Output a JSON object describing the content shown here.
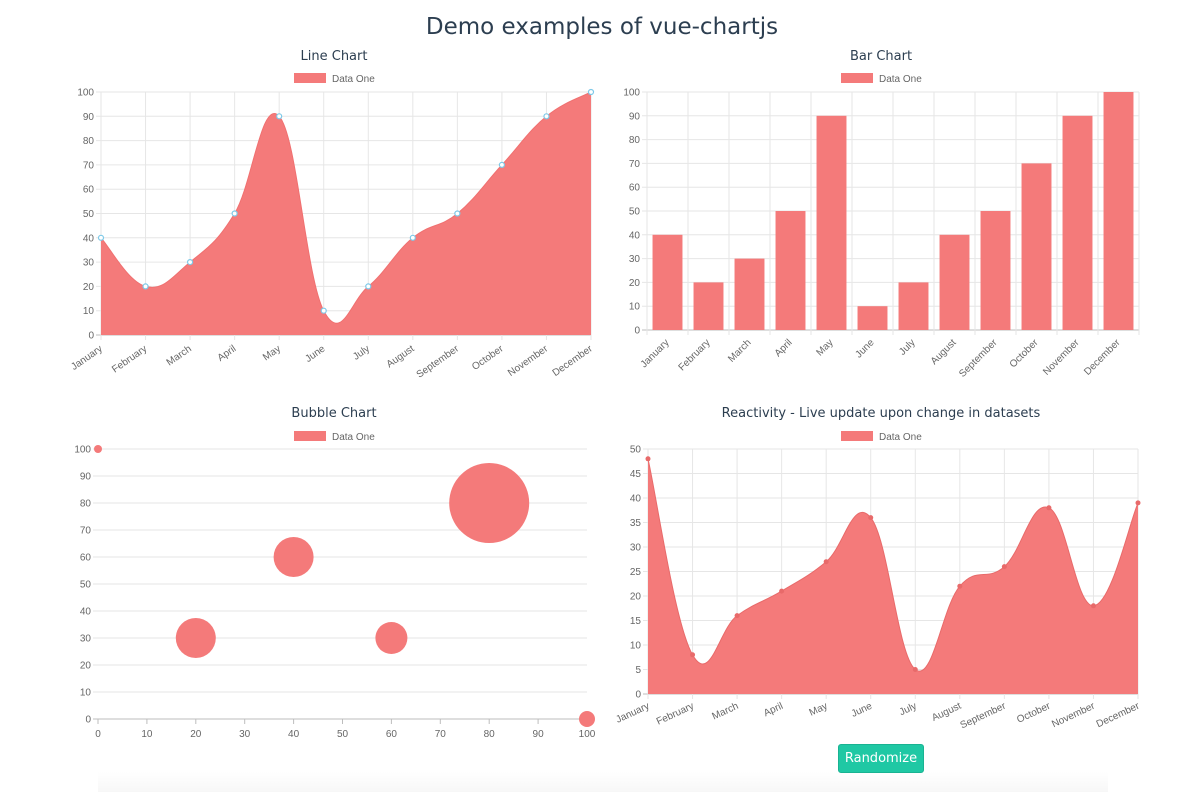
{
  "page": {
    "title": "Demo examples of vue-chartjs"
  },
  "colors": {
    "fill": "#f47a7a",
    "point_border": "#7ec9e8",
    "button": "#1fc8a4"
  },
  "randomize_label": "Randomize",
  "chart_data": [
    {
      "type": "area",
      "title": "Line Chart",
      "legend": [
        "Data One"
      ],
      "legend_position": "top",
      "categories": [
        "January",
        "February",
        "March",
        "April",
        "May",
        "June",
        "July",
        "August",
        "September",
        "October",
        "November",
        "December"
      ],
      "series": [
        {
          "name": "Data One",
          "values": [
            40,
            20,
            30,
            50,
            90,
            10,
            20,
            40,
            50,
            70,
            90,
            100
          ]
        }
      ],
      "ylim": [
        0,
        100
      ],
      "yticks": [
        0,
        10,
        20,
        30,
        40,
        50,
        60,
        70,
        80,
        90,
        100
      ],
      "grid": true
    },
    {
      "type": "bar",
      "title": "Bar Chart",
      "legend": [
        "Data One"
      ],
      "legend_position": "top",
      "categories": [
        "January",
        "February",
        "March",
        "April",
        "May",
        "June",
        "July",
        "August",
        "September",
        "October",
        "November",
        "December"
      ],
      "series": [
        {
          "name": "Data One",
          "values": [
            40,
            20,
            30,
            50,
            90,
            10,
            20,
            40,
            50,
            70,
            90,
            100
          ]
        }
      ],
      "ylim": [
        0,
        100
      ],
      "yticks": [
        0,
        10,
        20,
        30,
        40,
        50,
        60,
        70,
        80,
        90,
        100
      ],
      "grid": true
    },
    {
      "type": "scatter",
      "title": "Bubble Chart",
      "legend": [
        "Data One"
      ],
      "legend_position": "top",
      "series": [
        {
          "name": "Data One",
          "points": [
            {
              "x": 0,
              "y": 100,
              "r": 4
            },
            {
              "x": 20,
              "y": 30,
              "r": 20
            },
            {
              "x": 40,
              "y": 60,
              "r": 20
            },
            {
              "x": 60,
              "y": 30,
              "r": 16
            },
            {
              "x": 80,
              "y": 80,
              "r": 40
            },
            {
              "x": 100,
              "y": 0,
              "r": 8
            }
          ]
        }
      ],
      "xlim": [
        0,
        100
      ],
      "ylim": [
        0,
        100
      ],
      "xticks": [
        0,
        10,
        20,
        30,
        40,
        50,
        60,
        70,
        80,
        90,
        100
      ],
      "yticks": [
        0,
        10,
        20,
        30,
        40,
        50,
        60,
        70,
        80,
        90,
        100
      ],
      "grid": true
    },
    {
      "type": "area",
      "title": "Reactivity - Live update upon change in datasets",
      "legend": [
        "Data One"
      ],
      "legend_position": "top",
      "categories": [
        "January",
        "February",
        "March",
        "April",
        "May",
        "June",
        "July",
        "August",
        "September",
        "October",
        "November",
        "December"
      ],
      "series": [
        {
          "name": "Data One",
          "values": [
            48,
            8,
            16,
            21,
            27,
            36,
            5,
            22,
            26,
            38,
            18,
            39
          ]
        }
      ],
      "ylim": [
        0,
        50
      ],
      "yticks": [
        0,
        5,
        10,
        15,
        20,
        25,
        30,
        35,
        40,
        45,
        50
      ],
      "grid": true
    }
  ]
}
